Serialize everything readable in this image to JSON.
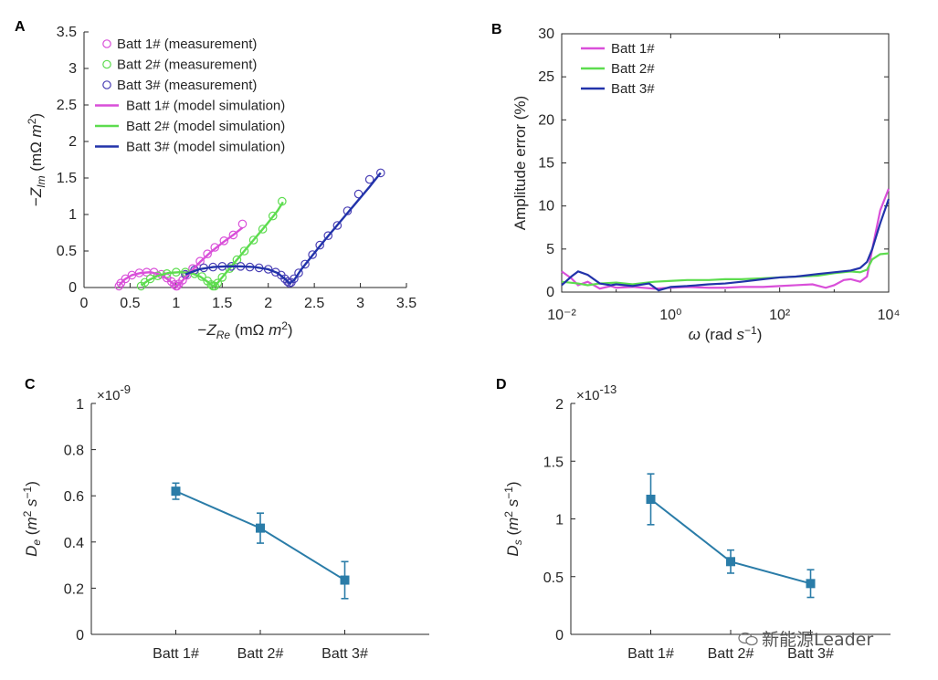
{
  "watermark": "新能源Leader",
  "chart_data": [
    {
      "panel": "A",
      "type": "scatter",
      "xlabel": "−Z_Re (mΩ m²)",
      "ylabel": "−Z_Im (mΩ m²)",
      "xlim": [
        0,
        3.5
      ],
      "ylim": [
        0,
        3.5
      ],
      "xticks": [
        "0",
        "0.5",
        "1",
        "1.5",
        "2",
        "2.5",
        "3",
        "3.5"
      ],
      "yticks": [
        "0",
        "0.5",
        "1",
        "1.5",
        "2",
        "2.5",
        "3",
        "3.5"
      ],
      "legend_position": "top-left",
      "series": [
        {
          "name": "Batt 1# (measurement)",
          "kind": "markers",
          "color": "#d94fd9",
          "x": [
            0.38,
            0.4,
            0.45,
            0.52,
            0.6,
            0.68,
            0.76,
            0.84,
            0.9,
            0.95,
            0.98,
            1.0,
            1.01,
            1.03,
            1.07,
            1.12,
            1.18,
            1.26,
            1.34,
            1.42,
            1.52,
            1.62,
            1.72
          ],
          "y": [
            0.02,
            0.06,
            0.12,
            0.17,
            0.2,
            0.21,
            0.21,
            0.18,
            0.13,
            0.08,
            0.04,
            0.02,
            0.02,
            0.05,
            0.1,
            0.17,
            0.26,
            0.36,
            0.46,
            0.55,
            0.64,
            0.72,
            0.87
          ]
        },
        {
          "name": "Batt 2# (measurement)",
          "kind": "markers",
          "color": "#5ddc4f",
          "x": [
            0.62,
            0.66,
            0.72,
            0.8,
            0.9,
            1.0,
            1.1,
            1.2,
            1.28,
            1.34,
            1.38,
            1.4,
            1.42,
            1.45,
            1.5,
            1.58,
            1.66,
            1.74,
            1.84,
            1.94,
            2.05,
            2.15
          ],
          "y": [
            0.02,
            0.07,
            0.12,
            0.16,
            0.19,
            0.21,
            0.21,
            0.19,
            0.15,
            0.09,
            0.04,
            0.02,
            0.02,
            0.06,
            0.14,
            0.26,
            0.38,
            0.5,
            0.65,
            0.8,
            0.98,
            1.18
          ]
        },
        {
          "name": "Batt 3# (measurement)",
          "kind": "markers",
          "color": "#4a3fb5",
          "x": [
            1.1,
            1.2,
            1.3,
            1.4,
            1.5,
            1.6,
            1.7,
            1.8,
            1.9,
            2.0,
            2.08,
            2.14,
            2.18,
            2.21,
            2.23,
            2.25,
            2.28,
            2.33,
            2.4,
            2.48,
            2.56,
            2.65,
            2.75,
            2.86,
            2.98,
            3.1,
            3.22
          ],
          "y": [
            0.18,
            0.24,
            0.27,
            0.28,
            0.29,
            0.29,
            0.29,
            0.28,
            0.27,
            0.25,
            0.21,
            0.17,
            0.12,
            0.08,
            0.06,
            0.07,
            0.12,
            0.2,
            0.32,
            0.45,
            0.58,
            0.71,
            0.85,
            1.05,
            1.28,
            1.48,
            1.57
          ]
        },
        {
          "name": "Batt 1# (model simulation)",
          "kind": "line",
          "color": "#d94fd9",
          "x": [
            0.38,
            0.44,
            0.52,
            0.62,
            0.72,
            0.82,
            0.9,
            0.96,
            1.0,
            1.03,
            1.08,
            1.16,
            1.26,
            1.38,
            1.5,
            1.62,
            1.72
          ],
          "y": [
            0.03,
            0.11,
            0.17,
            0.2,
            0.21,
            0.18,
            0.12,
            0.06,
            0.02,
            0.04,
            0.11,
            0.22,
            0.35,
            0.49,
            0.61,
            0.72,
            0.82
          ]
        },
        {
          "name": "Batt 2# (model simulation)",
          "kind": "line",
          "color": "#5ddc4f",
          "x": [
            0.62,
            0.7,
            0.8,
            0.92,
            1.04,
            1.16,
            1.26,
            1.34,
            1.4,
            1.43,
            1.48,
            1.58,
            1.7,
            1.84,
            1.98,
            2.1,
            2.16
          ],
          "y": [
            0.03,
            0.1,
            0.16,
            0.2,
            0.21,
            0.2,
            0.15,
            0.08,
            0.02,
            0.03,
            0.11,
            0.26,
            0.44,
            0.65,
            0.86,
            1.05,
            1.17
          ]
        },
        {
          "name": "Batt 3# (model simulation)",
          "kind": "line",
          "color": "#2233aa",
          "x": [
            1.1,
            1.25,
            1.4,
            1.55,
            1.7,
            1.85,
            2.0,
            2.1,
            2.18,
            2.23,
            2.28,
            2.36,
            2.48,
            2.62,
            2.78,
            2.94,
            3.1,
            3.22
          ],
          "y": [
            0.18,
            0.25,
            0.28,
            0.29,
            0.29,
            0.28,
            0.25,
            0.2,
            0.12,
            0.06,
            0.1,
            0.25,
            0.44,
            0.66,
            0.9,
            1.14,
            1.38,
            1.57
          ]
        }
      ]
    },
    {
      "panel": "B",
      "type": "line",
      "xlabel": "ω (rad s⁻¹)",
      "ylabel": "Amplitude error (%)",
      "xscale": "log",
      "xlim": [
        0.01,
        10000
      ],
      "ylim": [
        0,
        30
      ],
      "xticks": [
        "10⁻²",
        "10⁰",
        "10²",
        "10⁴"
      ],
      "yticks": [
        "0",
        "5",
        "10",
        "15",
        "20",
        "25",
        "30"
      ],
      "legend_position": "top-left",
      "series": [
        {
          "name": "Batt 1#",
          "color": "#d94fd9",
          "x": [
            0.01,
            0.015,
            0.02,
            0.03,
            0.05,
            0.08,
            0.1,
            0.2,
            0.5,
            1,
            2,
            5,
            10,
            20,
            50,
            100,
            200,
            400,
            700,
            1000,
            1500,
            2000,
            3000,
            4000,
            5000,
            7000,
            10000
          ],
          "y": [
            2.4,
            1.6,
            0.8,
            1.2,
            0.4,
            0.7,
            0.5,
            0.6,
            0.4,
            0.5,
            0.6,
            0.5,
            0.5,
            0.6,
            0.6,
            0.7,
            0.8,
            0.9,
            0.5,
            0.8,
            1.4,
            1.5,
            1.2,
            1.8,
            5.0,
            9.5,
            12.0
          ]
        },
        {
          "name": "Batt 2#",
          "color": "#5ddc4f",
          "x": [
            0.01,
            0.02,
            0.03,
            0.05,
            0.1,
            0.2,
            0.5,
            1,
            2,
            5,
            10,
            20,
            50,
            100,
            200,
            500,
            1000,
            2000,
            3000,
            4000,
            5000,
            7000,
            10000
          ],
          "y": [
            1.2,
            1.0,
            0.8,
            1.0,
            1.1,
            0.9,
            1.2,
            1.3,
            1.4,
            1.4,
            1.5,
            1.5,
            1.6,
            1.7,
            1.8,
            1.9,
            2.2,
            2.4,
            2.3,
            2.6,
            3.8,
            4.4,
            4.5
          ]
        },
        {
          "name": "Batt 3#",
          "color": "#2233aa",
          "x": [
            0.01,
            0.015,
            0.02,
            0.03,
            0.05,
            0.08,
            0.1,
            0.2,
            0.4,
            0.6,
            1,
            2,
            5,
            10,
            20,
            50,
            100,
            200,
            500,
            1000,
            2000,
            3000,
            4000,
            5000,
            7000,
            10000
          ],
          "y": [
            0.8,
            1.8,
            2.4,
            2.0,
            1.0,
            0.8,
            0.9,
            0.7,
            1.0,
            0.2,
            0.6,
            0.7,
            0.9,
            1.0,
            1.2,
            1.5,
            1.7,
            1.8,
            2.1,
            2.3,
            2.5,
            2.8,
            3.5,
            5.0,
            8.0,
            10.8
          ]
        }
      ]
    },
    {
      "panel": "C",
      "type": "line",
      "ylabel": "D_e (m² s⁻¹)",
      "multiplier": "×10",
      "multiplier_exp": "-9",
      "categories": [
        "Batt 1#",
        "Batt 2#",
        "Batt 3#"
      ],
      "ylim": [
        0,
        1
      ],
      "yticks": [
        "0",
        "0.2",
        "0.4",
        "0.6",
        "0.8",
        "1"
      ],
      "series": [
        {
          "color": "#2a7ca8",
          "values": [
            0.62,
            0.46,
            0.235
          ],
          "err": [
            0.035,
            0.065,
            0.08
          ]
        }
      ]
    },
    {
      "panel": "D",
      "type": "line",
      "ylabel": "D_s (m² s⁻¹)",
      "multiplier": "×10",
      "multiplier_exp": "-13",
      "categories": [
        "Batt 1#",
        "Batt 2#",
        "Batt 3#"
      ],
      "ylim": [
        0,
        2
      ],
      "yticks": [
        "0",
        "0.5",
        "1",
        "1.5",
        "2"
      ],
      "series": [
        {
          "color": "#2a7ca8",
          "values": [
            1.17,
            0.63,
            0.44
          ],
          "err": [
            0.22,
            0.1,
            0.12
          ]
        }
      ]
    }
  ]
}
